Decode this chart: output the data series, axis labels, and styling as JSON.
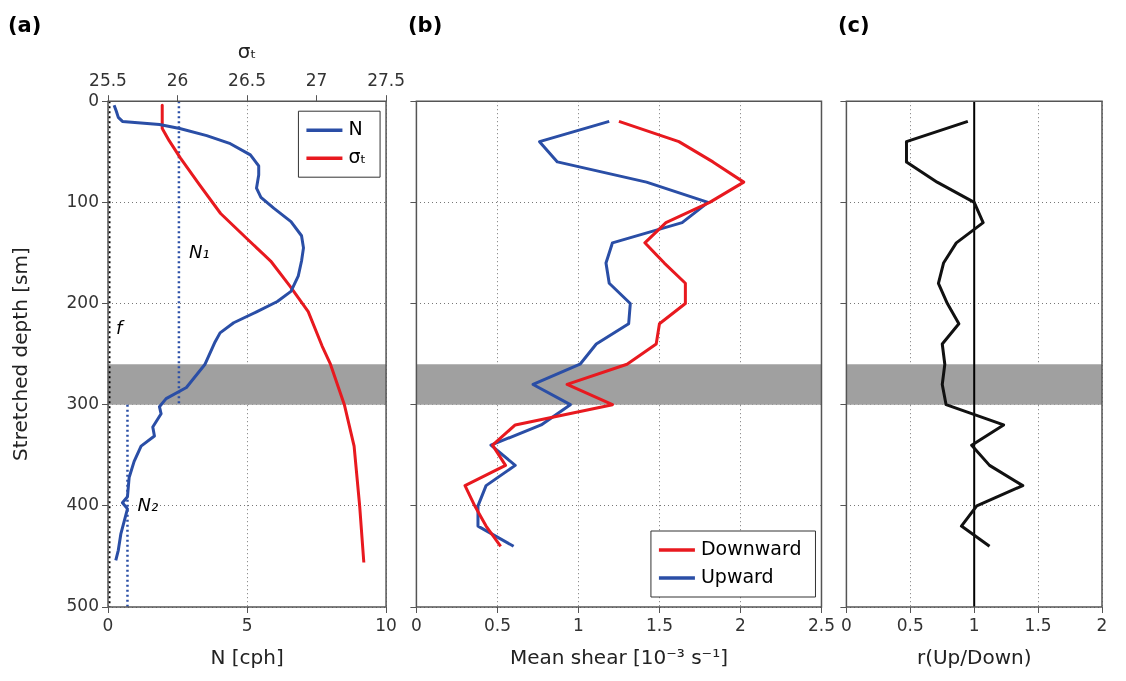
{
  "chart_data": [
    {
      "type": "line",
      "title": "(a)",
      "xlabel": "N [cph]",
      "x2label": "σₜ",
      "ylabel": "Stretched depth [sm]",
      "xlim": [
        0,
        10
      ],
      "xticks": [
        0,
        5,
        10
      ],
      "x2lim": [
        25.5,
        27.5
      ],
      "x2ticks": [
        25.5,
        26,
        26.5,
        27,
        27.5
      ],
      "ylim": [
        500,
        0
      ],
      "yticks": [
        0,
        100,
        200,
        300,
        400,
        500
      ],
      "grid": true,
      "legend": "top right",
      "marker": "none",
      "series": [
        {
          "name": "N",
          "color": "#2a4ea6",
          "x": [
            0.22,
            0.3,
            0.37,
            0.52,
            1.85,
            2.58,
            3.55,
            4.4,
            5.12,
            5.42,
            5.42,
            5.34,
            5.5,
            5.97,
            6.58,
            6.96,
            7.03,
            6.96,
            6.84,
            6.58,
            6.09,
            5.36,
            4.52,
            4.03,
            3.85,
            3.49,
            2.82,
            2.09,
            1.85,
            1.91,
            1.61,
            1.67,
            1.19,
            0.94,
            0.76,
            0.7,
            0.52,
            0.7,
            0.46,
            0.37,
            0.28
          ],
          "values": [
            4,
            10,
            16,
            20,
            23,
            27,
            34,
            42,
            53,
            64,
            73,
            86,
            95,
            106,
            119,
            133,
            145,
            158,
            173,
            188,
            198,
            208,
            219,
            229,
            238,
            260,
            283,
            294,
            302,
            309,
            322,
            331,
            341,
            356,
            372,
            391,
            397,
            403,
            428,
            444,
            454
          ]
        },
        {
          "name": "σₜ",
          "color": "#e8191f",
          "axis": "x2",
          "x": [
            25.89,
            25.89,
            25.94,
            26.02,
            26.16,
            26.31,
            26.5,
            26.67,
            26.81,
            26.94,
            27.04,
            27.1,
            27.2,
            27.27,
            27.31,
            27.34
          ],
          "values": [
            4,
            27,
            39,
            56,
            83,
            111,
            136,
            158,
            183,
            208,
            242,
            260,
            300,
            341,
            400,
            456
          ]
        },
        {
          "name": "N₁",
          "color": "#2a4ea6",
          "line_style": "dotted",
          "x": [
            2.55,
            2.55
          ],
          "values": [
            0,
            300
          ]
        },
        {
          "name": "N₂",
          "color": "#2a4ea6",
          "line_style": "dotted",
          "x": [
            0.7,
            0.7
          ],
          "values": [
            300,
            500
          ]
        }
      ],
      "ref_lines": [
        {
          "axis": "x",
          "value": 0,
          "label": "f",
          "color": "#000000",
          "line_style": "dotted"
        }
      ],
      "bands": [
        {
          "axis": "y",
          "from": 260,
          "to": 300,
          "color": "#a0a0a0"
        }
      ]
    },
    {
      "type": "line",
      "title": "(b)",
      "xlabel": "Mean shear [10⁻³ s⁻¹]",
      "xlim": [
        0,
        2.5
      ],
      "xticks": [
        0,
        0.5,
        1,
        1.5,
        2,
        2.5
      ],
      "ylim": [
        500,
        0
      ],
      "yticks": [
        0,
        100,
        200,
        300,
        400,
        500
      ],
      "tick_labels": "x",
      "grid": true,
      "legend": "bottom right",
      "marker": "none",
      "series": [
        {
          "name": "Downward",
          "color": "#e8191f",
          "x": [
            1.25,
            1.62,
            1.83,
            2.02,
            1.81,
            1.54,
            1.41,
            1.53,
            1.66,
            1.66,
            1.5,
            1.48,
            1.3,
            0.93,
            1.21,
            0.61,
            0.47,
            0.55,
            0.3,
            0.36,
            0.43,
            0.52
          ],
          "values": [
            20,
            40,
            60,
            80,
            100,
            120,
            140,
            160,
            180,
            200,
            220,
            240,
            260,
            280,
            300,
            320,
            340,
            360,
            380,
            400,
            420,
            440
          ]
        },
        {
          "name": "Upward",
          "color": "#2a4ea6",
          "x": [
            1.19,
            0.76,
            0.87,
            1.42,
            1.8,
            1.64,
            1.21,
            1.17,
            1.19,
            1.32,
            1.31,
            1.11,
            1.01,
            0.72,
            0.95,
            0.77,
            0.46,
            0.61,
            0.43,
            0.38,
            0.38,
            0.6
          ],
          "values": [
            20,
            40,
            60,
            80,
            100,
            120,
            140,
            160,
            180,
            200,
            220,
            240,
            260,
            280,
            300,
            320,
            340,
            360,
            380,
            400,
            420,
            440
          ]
        }
      ],
      "bands": [
        {
          "axis": "y",
          "from": 260,
          "to": 300,
          "color": "#a0a0a0"
        }
      ]
    },
    {
      "type": "line",
      "title": "(c)",
      "xlabel": "r(Up/Down)",
      "xlim": [
        0,
        2
      ],
      "xticks": [
        0,
        0.5,
        1,
        1.5,
        2
      ],
      "ylim": [
        500,
        0
      ],
      "yticks": [
        0,
        100,
        200,
        300,
        400,
        500
      ],
      "tick_labels": "x",
      "grid": true,
      "marker": "none",
      "series": [
        {
          "color": "#111111",
          "x": [
            0.95,
            0.47,
            0.47,
            0.71,
            1.0,
            1.07,
            0.86,
            0.76,
            0.72,
            0.79,
            0.88,
            0.75,
            0.77,
            0.75,
            0.78,
            1.23,
            0.98,
            1.12,
            1.38,
            1.02,
            0.9,
            1.12
          ],
          "values": [
            20,
            40,
            60,
            80,
            100,
            120,
            140,
            160,
            180,
            200,
            220,
            240,
            260,
            280,
            300,
            320,
            340,
            360,
            380,
            400,
            420,
            440
          ]
        }
      ],
      "ref_lines": [
        {
          "axis": "x",
          "value": 1,
          "color": "#000000",
          "line_style": "solid"
        }
      ],
      "bands": [
        {
          "axis": "y",
          "from": 260,
          "to": 300,
          "color": "#a0a0a0"
        }
      ]
    }
  ]
}
